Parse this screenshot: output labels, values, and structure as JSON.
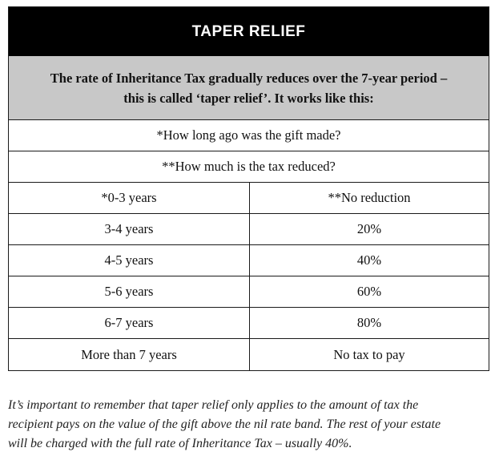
{
  "table": {
    "title": "TAPER RELIEF",
    "intro_line1": "The rate of Inheritance Tax gradually reduces over the 7-year period –",
    "intro_line2": "this is called ‘taper relief’. It works like this:",
    "question1": "*How long ago was the gift made?",
    "question2": "**How much is the tax reduced?",
    "rows": [
      {
        "period": "*0-3 years",
        "reduction": "**No reduction"
      },
      {
        "period": "3-4 years",
        "reduction": "20%"
      },
      {
        "period": "4-5 years",
        "reduction": "40%"
      },
      {
        "period": "5-6 years",
        "reduction": "60%"
      },
      {
        "period": "6-7 years",
        "reduction": "80%"
      },
      {
        "period": "More than 7 years",
        "reduction": "No tax to pay"
      }
    ]
  },
  "footnote": {
    "line1": "It’s important to remember that taper relief only applies to the amount of tax the",
    "line2": "recipient pays on the value of the gift above the nil rate band. The rest of your estate",
    "line3": "will be charged with the full rate of Inheritance Tax – usually 40%."
  }
}
